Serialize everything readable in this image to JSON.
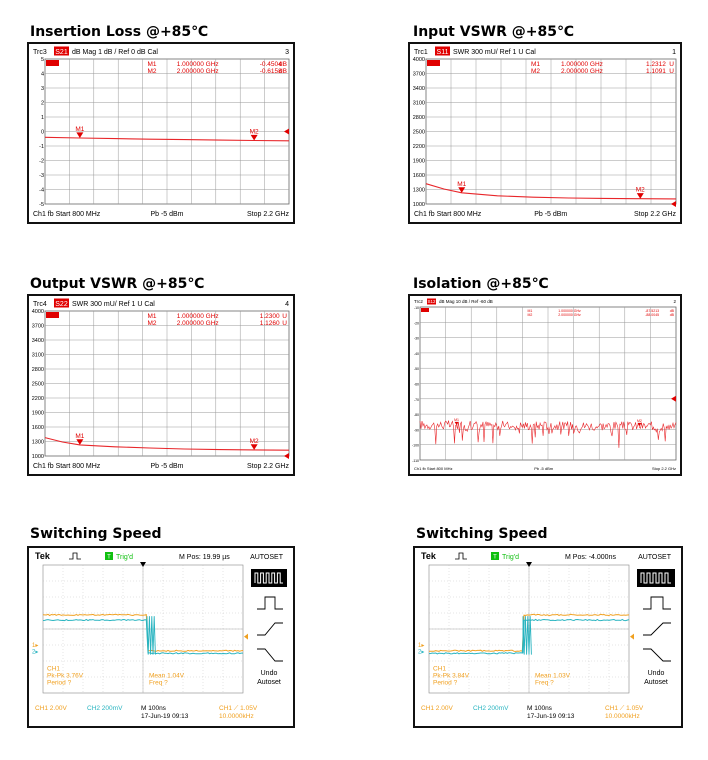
{
  "colors": {
    "trace": "#e8262a",
    "marker": "#e00000",
    "ch1": "#f0a020",
    "ch2": "#28b4c0",
    "grid": "#999999",
    "trig": "#10c010"
  },
  "vna_panels": [
    {
      "id": "insertion",
      "title": "Insertion Loss @+85℃",
      "trc": "Trc3",
      "param": "S21",
      "format": "dB Mag",
      "scale": "1 dB /",
      "ref": "Ref 0 dB",
      "cal": "Cal",
      "num": "3",
      "markers": [
        {
          "name": "M1",
          "freq": "1.000000  GHz",
          "value": "-0.4504",
          "unit": "dB"
        },
        {
          "name": "M2",
          "freq": "2.000000  GHz",
          "value": "-0.6158",
          "unit": "dB"
        }
      ],
      "y_ticks": [
        "5",
        "4",
        "3",
        "2",
        "1",
        "0",
        "-1",
        "-2",
        "-3",
        "-4",
        "-5"
      ],
      "footer": {
        "ch": "Ch1",
        "fb": "fb",
        "start": "Start  800 MHz",
        "pb": "Pb   -5 dBm",
        "stop": "Stop  2.2 GHz"
      }
    },
    {
      "id": "input_vswr",
      "title": "Input VSWR @+85℃",
      "trc": "Trc1",
      "param": "S11",
      "format": "SWR",
      "scale": "300 mU/",
      "ref": "Ref 1 U",
      "cal": "Cal",
      "num": "1",
      "markers": [
        {
          "name": "M1",
          "freq": "1.000000  GHz",
          "value": "1.2312",
          "unit": "U"
        },
        {
          "name": "M2",
          "freq": "2.000000  GHz",
          "value": "1.1091",
          "unit": "U"
        }
      ],
      "y_ticks": [
        "4000",
        "3700",
        "3400",
        "3100",
        "2800",
        "2500",
        "2200",
        "1900",
        "1600",
        "1300",
        "1000"
      ],
      "footer": {
        "ch": "Ch1",
        "fb": "fb",
        "start": "Start  800 MHz",
        "pb": "Pb   -5 dBm",
        "stop": "Stop  2.2 GHz"
      }
    },
    {
      "id": "output_vswr",
      "title": "Output VSWR @+85℃",
      "trc": "Trc4",
      "param": "S22",
      "format": "SWR",
      "scale": "300 mU/",
      "ref": "Ref 1 U",
      "cal": "Cal",
      "num": "4",
      "markers": [
        {
          "name": "M1",
          "freq": "1.000000  GHz",
          "value": "1.2300",
          "unit": "U"
        },
        {
          "name": "M2",
          "freq": "2.000000  GHz",
          "value": "1.1260",
          "unit": "U"
        }
      ],
      "y_ticks": [
        "4000",
        "3700",
        "3400",
        "3100",
        "2800",
        "2500",
        "2200",
        "1900",
        "1600",
        "1300",
        "1000"
      ],
      "footer": {
        "ch": "Ch1",
        "fb": "fb",
        "start": "Start  800 MHz",
        "pb": "Pb   -5 dBm",
        "stop": "Stop  2.2 GHz"
      }
    },
    {
      "id": "isolation",
      "title": "Isolation @+85℃",
      "trc": "Trc2",
      "param": "S12",
      "format": "dB Mag",
      "scale": "10 dB /",
      "ref": "Ref -60 dB",
      "cal": "",
      "num": "2",
      "markers": [
        {
          "name": "M1",
          "freq": "1.000000  GHz",
          "value": "-87.5213",
          "unit": "dB"
        },
        {
          "name": "M2",
          "freq": "2.000000  GHz",
          "value": "-88.0045",
          "unit": "dB"
        }
      ],
      "y_ticks": [
        "-10",
        "-20",
        "-30",
        "-40",
        "-50",
        "-60",
        "-70",
        "-80",
        "-90",
        "-100",
        "-110"
      ],
      "footer": {
        "ch": "Ch1",
        "fb": "fb",
        "start": "Start  800 MHz",
        "pb": "Pb   -5 dBm",
        "stop": "Stop  2.2 GHz"
      }
    }
  ],
  "scopes": [
    {
      "id": "switch1",
      "title": "Switching Speed",
      "brand": "Tek",
      "trig": "T",
      "trig_label": "Trig'd",
      "mpos": "M Pos: 19.99 µs",
      "autoset": "AUTOSET",
      "ch1_label": "CH1",
      "pkpk": "Pk-Pk 3.76V",
      "period": "Period  ?",
      "mean": "Mean 1.04V",
      "freq": "Freq  ?",
      "footer_ch1": "CH1  2.00V",
      "footer_ch2": "CH2  200mV",
      "timebase": "M 100ns",
      "date": "17-Jun-19 09:13",
      "trig_level": "CH1  ⟋  1.05V",
      "rate": "10.0000kHz",
      "side": {
        "undo": "Undo",
        "autoset": "Autoset"
      },
      "edge": "falling"
    },
    {
      "id": "switch2",
      "title": "Switching Speed",
      "brand": "Tek",
      "trig": "T",
      "trig_label": "Trig'd",
      "mpos": "M Pos: -4.000ns",
      "autoset": "AUTOSET",
      "ch1_label": "CH1",
      "pkpk": "Pk-Pk 3.84V",
      "period": "Period  ?",
      "mean": "Mean 1.03V",
      "freq": "Freq  ?",
      "footer_ch1": "CH1  2.00V",
      "footer_ch2": "CH2  200mV",
      "timebase": "M 100ns",
      "date": "17-Jun-19 09:13",
      "trig_level": "CH1  ⟋  1.05V",
      "rate": "10.0000kHz",
      "side": {
        "undo": "Undo",
        "autoset": "Autoset"
      },
      "edge": "rising"
    }
  ],
  "chart_data": [
    {
      "type": "line",
      "title": "Insertion Loss @+85℃",
      "xlabel": "",
      "ylabel": "",
      "x_range_ghz": [
        0.8,
        2.2
      ],
      "ylim": [
        -5,
        5
      ],
      "series": [
        {
          "x": [
            0.8,
            1.0,
            1.2,
            1.4,
            1.6,
            1.8,
            2.0,
            2.2
          ],
          "values": [
            -0.4,
            -0.45,
            -0.49,
            -0.53,
            -0.56,
            -0.59,
            -0.62,
            -0.64
          ]
        }
      ]
    },
    {
      "type": "line",
      "title": "Input VSWR @+85℃",
      "x_range_ghz": [
        0.8,
        2.2
      ],
      "ylim": [
        1000,
        4000
      ],
      "series": [
        {
          "x": [
            0.8,
            0.9,
            1.0,
            1.2,
            1.4,
            1.6,
            1.8,
            2.0,
            2.2
          ],
          "values": [
            1420,
            1310,
            1231,
            1170,
            1140,
            1125,
            1115,
            1109,
            1105
          ]
        }
      ]
    },
    {
      "type": "line",
      "title": "Output VSWR @+85℃",
      "x_range_ghz": [
        0.8,
        2.2
      ],
      "ylim": [
        1000,
        4000
      ],
      "series": [
        {
          "x": [
            0.8,
            0.9,
            1.0,
            1.2,
            1.4,
            1.6,
            1.8,
            2.0,
            2.2
          ],
          "values": [
            1380,
            1290,
            1230,
            1190,
            1165,
            1145,
            1133,
            1126,
            1120
          ]
        }
      ]
    },
    {
      "type": "line",
      "title": "Isolation @+85℃",
      "x_range_ghz": [
        0.8,
        2.2
      ],
      "ylim": [
        -110,
        -10
      ],
      "series": [
        {
          "x": [
            0.8,
            2.2
          ],
          "values": [
            -87,
            -88
          ]
        }
      ]
    }
  ]
}
